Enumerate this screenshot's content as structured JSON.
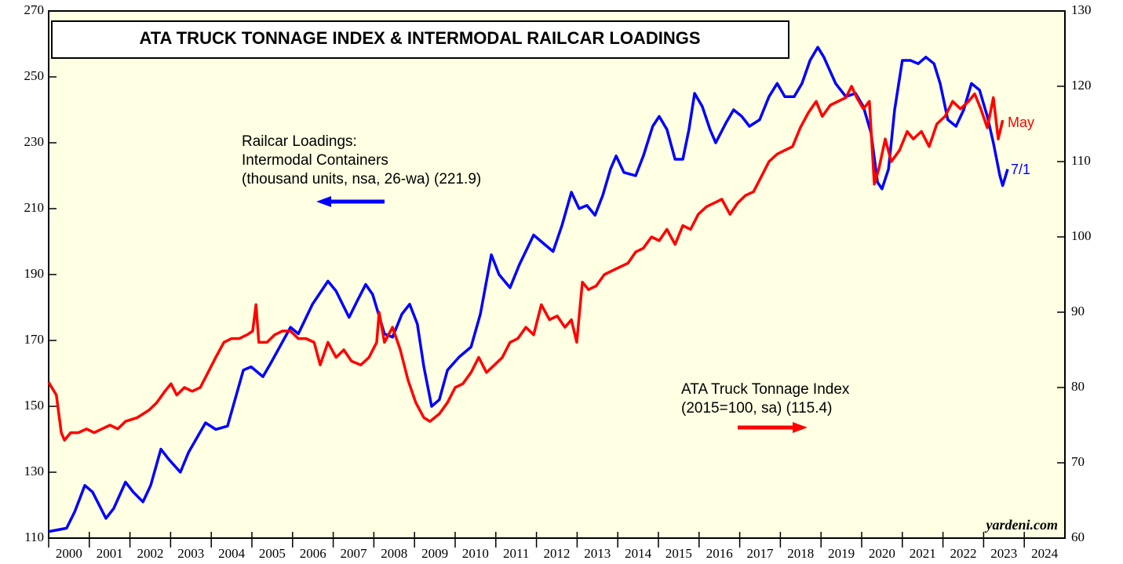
{
  "chart_data": {
    "type": "line",
    "title": "ATA TRUCK TONNAGE INDEX & INTERMODAL RAILCAR LOADINGS",
    "categories": [
      "2000",
      "2001",
      "2002",
      "2003",
      "2004",
      "2005",
      "2006",
      "2007",
      "2008",
      "2009",
      "2010",
      "2011",
      "2012",
      "2013",
      "2014",
      "2015",
      "2016",
      "2017",
      "2018",
      "2019",
      "2020",
      "2021",
      "2022",
      "2023",
      "2024"
    ],
    "xlim": [
      2000,
      2025
    ],
    "ylim": [
      110,
      270
    ],
    "yticks": [
      110,
      130,
      150,
      170,
      190,
      210,
      230,
      250,
      270
    ],
    "y2lim": [
      60,
      130
    ],
    "y2ticks": [
      60,
      70,
      80,
      90,
      100,
      110,
      120,
      130
    ],
    "annotations": {
      "rail": [
        "Railcar Loadings:",
        "Intermodal Containers",
        "(thousand units, nsa, 26-wa) (221.9)"
      ],
      "ata": [
        "ATA Truck Tonnage Index",
        "(2015=100, sa) (115.4)"
      ],
      "may": "May",
      "jul": "7/1",
      "source": "yardeni.com"
    },
    "series": [
      {
        "name": "Railcar Loadings: Intermodal Containers",
        "color": "#0000ff",
        "axis": "y",
        "x": [
          2000.0,
          2000.44,
          2000.64,
          2000.89,
          2001.08,
          2001.41,
          2001.6,
          2001.89,
          2002.08,
          2002.32,
          2002.51,
          2002.76,
          2002.95,
          2003.24,
          2003.44,
          2003.86,
          2004.11,
          2004.4,
          2004.79,
          2004.98,
          2005.27,
          2005.46,
          2005.95,
          2006.14,
          2006.49,
          2006.87,
          2007.07,
          2007.39,
          2007.59,
          2007.8,
          2007.97,
          2008.26,
          2008.46,
          2008.69,
          2008.88,
          2009.07,
          2009.23,
          2009.42,
          2009.61,
          2009.81,
          2010.1,
          2010.39,
          2010.62,
          2010.89,
          2011.08,
          2011.35,
          2011.58,
          2011.93,
          2012.12,
          2012.41,
          2012.63,
          2012.86,
          2013.05,
          2013.24,
          2013.44,
          2013.63,
          2013.82,
          2013.96,
          2014.15,
          2014.44,
          2014.63,
          2014.86,
          2015.02,
          2015.21,
          2015.41,
          2015.6,
          2015.75,
          2015.89,
          2016.08,
          2016.27,
          2016.41,
          2016.66,
          2016.85,
          2017.05,
          2017.24,
          2017.49,
          2017.72,
          2017.92,
          2018.11,
          2018.34,
          2018.53,
          2018.73,
          2018.92,
          2019.07,
          2019.36,
          2019.61,
          2019.85,
          2020.04,
          2020.23,
          2020.39,
          2020.5,
          2020.66,
          2020.81,
          2021.0,
          2021.2,
          2021.39,
          2021.58,
          2021.78,
          2021.93,
          2022.12,
          2022.32,
          2022.51,
          2022.7,
          2022.9,
          2023.09,
          2023.24,
          2023.4,
          2023.47,
          2023.59
        ],
        "values": [
          112,
          113,
          118,
          126,
          124,
          116,
          119,
          127,
          124,
          121,
          126,
          137,
          134,
          130,
          136,
          145,
          143,
          144,
          161,
          162,
          159,
          163,
          174,
          172,
          181,
          188,
          185,
          177,
          182,
          187,
          184,
          172,
          171,
          178,
          181,
          175,
          162,
          150,
          152,
          161,
          165,
          168,
          178,
          196,
          190,
          186,
          193,
          202,
          200,
          197,
          205,
          215,
          210,
          211,
          208,
          214,
          222,
          226,
          221,
          220,
          226,
          235,
          238,
          234,
          225,
          225,
          234,
          245,
          241,
          234,
          230,
          236,
          240,
          238,
          235,
          237,
          244,
          248,
          244,
          244,
          248,
          255,
          259,
          256,
          248,
          244,
          245,
          241,
          233,
          218,
          216,
          222,
          240,
          255,
          255,
          254,
          256,
          254,
          248,
          237,
          235,
          240,
          248,
          246,
          238,
          230,
          220,
          217,
          222
        ]
      },
      {
        "name": "ATA Truck Tonnage Index",
        "color": "#ff0000",
        "axis": "y2",
        "x": [
          2000.0,
          2000.19,
          2000.31,
          2000.39,
          2000.54,
          2000.73,
          2000.93,
          2001.12,
          2001.31,
          2001.51,
          2001.7,
          2001.89,
          2002.18,
          2002.47,
          2002.66,
          2002.86,
          2003.01,
          2003.15,
          2003.34,
          2003.53,
          2003.73,
          2003.92,
          2004.11,
          2004.31,
          2004.5,
          2004.69,
          2004.88,
          2005.02,
          2005.1,
          2005.17,
          2005.37,
          2005.56,
          2005.75,
          2005.95,
          2006.14,
          2006.33,
          2006.53,
          2006.68,
          2006.87,
          2007.07,
          2007.26,
          2007.45,
          2007.68,
          2007.88,
          2008.07,
          2008.13,
          2008.26,
          2008.46,
          2008.65,
          2008.84,
          2009.03,
          2009.23,
          2009.38,
          2009.61,
          2009.81,
          2010.0,
          2010.19,
          2010.39,
          2010.58,
          2010.77,
          2010.97,
          2011.16,
          2011.35,
          2011.54,
          2011.74,
          2011.93,
          2012.12,
          2012.32,
          2012.51,
          2012.7,
          2012.86,
          2012.99,
          2013.13,
          2013.28,
          2013.47,
          2013.67,
          2013.86,
          2014.05,
          2014.25,
          2014.44,
          2014.63,
          2014.83,
          2015.02,
          2015.21,
          2015.41,
          2015.6,
          2015.79,
          2015.98,
          2016.18,
          2016.37,
          2016.56,
          2016.76,
          2016.95,
          2017.14,
          2017.34,
          2017.53,
          2017.72,
          2017.92,
          2018.11,
          2018.3,
          2018.49,
          2018.69,
          2018.88,
          2019.03,
          2019.23,
          2019.42,
          2019.61,
          2019.75,
          2019.88,
          2020.04,
          2020.19,
          2020.31,
          2020.42,
          2020.58,
          2020.73,
          2020.93,
          2021.12,
          2021.27,
          2021.47,
          2021.66,
          2021.85,
          2022.05,
          2022.24,
          2022.43,
          2022.63,
          2022.78,
          2022.93,
          2023.09,
          2023.24,
          2023.36,
          2023.47
        ],
        "values": [
          80.7,
          79,
          74,
          73,
          74,
          74,
          74.5,
          74,
          74.5,
          75,
          74.5,
          75.5,
          76,
          77,
          78,
          79.5,
          80.5,
          79,
          80,
          79.5,
          80,
          82,
          84,
          86,
          86.5,
          86.5,
          87,
          87.5,
          91,
          86,
          86,
          87,
          87.5,
          87.5,
          86.5,
          86.5,
          86,
          83,
          86,
          84,
          85,
          83.5,
          83,
          84,
          86,
          90,
          86,
          88,
          85,
          81,
          78,
          76,
          75.5,
          76.5,
          78,
          80,
          80.5,
          82,
          84,
          82,
          83,
          84,
          86,
          86.5,
          88,
          87,
          91,
          89,
          89.5,
          88,
          89,
          86,
          94,
          93,
          93.5,
          95,
          95.5,
          96,
          96.5,
          98,
          98.5,
          100,
          99.5,
          101,
          99,
          101.5,
          101,
          103,
          104,
          104.5,
          105,
          103,
          104.5,
          105.5,
          106,
          108,
          110,
          111,
          111.5,
          112,
          114.5,
          116.5,
          118,
          116,
          117.5,
          118,
          118.5,
          120,
          118.5,
          117,
          118,
          107,
          109,
          113,
          110,
          111.5,
          114,
          113,
          114,
          112,
          115,
          116,
          118,
          117,
          118,
          119,
          117,
          114.5,
          118.5,
          113,
          115.5
        ]
      }
    ]
  }
}
